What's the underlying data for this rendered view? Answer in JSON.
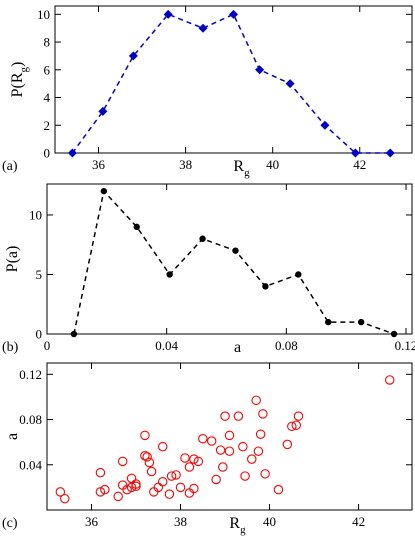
{
  "chart_data": [
    {
      "type": "line",
      "panel_label": "(a)",
      "xlabel_main": "R",
      "xlabel_sub": "g",
      "ylabel_main": "P(R",
      "ylabel_sub": "g",
      "ylabel_close": ")",
      "xlim": [
        35,
        43.2
      ],
      "ylim": [
        0,
        10.6
      ],
      "xticks": [
        36,
        38,
        40,
        42
      ],
      "yticks": [
        0,
        2,
        4,
        6,
        8,
        10
      ],
      "marker": "diamond",
      "line_style": "dashed",
      "color": "#0000cc",
      "x": [
        35.4,
        36.1,
        36.8,
        37.6,
        38.4,
        39.1,
        39.7,
        40.4,
        41.2,
        41.9,
        42.7
      ],
      "y": [
        0,
        3,
        7,
        10,
        9,
        10,
        6,
        5,
        2,
        0,
        0
      ]
    },
    {
      "type": "line",
      "panel_label": "(b)",
      "xlabel_main": "a",
      "ylabel_main": "P(a)",
      "xlim": [
        0,
        0.122
      ],
      "ylim": [
        0,
        12.6
      ],
      "xticks": [
        0,
        0.04,
        0.08,
        0.12
      ],
      "xtick_labels": [
        "0",
        "0.04",
        "0.08",
        "0.12"
      ],
      "yticks": [
        0,
        5,
        10
      ],
      "marker": "circle",
      "line_style": "dashed",
      "color": "#000000",
      "x": [
        0.009,
        0.019,
        0.03,
        0.041,
        0.052,
        0.063,
        0.073,
        0.084,
        0.094,
        0.105,
        0.116
      ],
      "y": [
        0,
        12,
        9,
        5,
        8,
        7,
        4,
        5,
        1,
        1,
        0
      ]
    },
    {
      "type": "scatter",
      "panel_label": "(c)",
      "xlabel_main": "R",
      "xlabel_sub": "g",
      "ylabel_main": "a",
      "xlim": [
        35,
        43.2
      ],
      "ylim": [
        0,
        0.13
      ],
      "xticks": [
        36,
        38,
        40,
        42
      ],
      "yticks": [
        0.04,
        0.08,
        0.12
      ],
      "ytick_labels": [
        "0.04",
        "0.08",
        "0.12"
      ],
      "marker": "open-circle",
      "color": "#ff0000",
      "points": [
        [
          35.3,
          0.016
        ],
        [
          35.4,
          0.01
        ],
        [
          36.2,
          0.033
        ],
        [
          36.2,
          0.016
        ],
        [
          36.3,
          0.018
        ],
        [
          36.6,
          0.012
        ],
        [
          36.7,
          0.043
        ],
        [
          36.7,
          0.022
        ],
        [
          36.8,
          0.018
        ],
        [
          36.9,
          0.028
        ],
        [
          36.9,
          0.02
        ],
        [
          37.0,
          0.023
        ],
        [
          37.0,
          0.021
        ],
        [
          37.2,
          0.048
        ],
        [
          37.2,
          0.066
        ],
        [
          37.25,
          0.047
        ],
        [
          37.3,
          0.042
        ],
        [
          37.35,
          0.034
        ],
        [
          37.4,
          0.016
        ],
        [
          37.5,
          0.02
        ],
        [
          37.6,
          0.056
        ],
        [
          37.6,
          0.025
        ],
        [
          37.75,
          0.014
        ],
        [
          37.8,
          0.03
        ],
        [
          37.9,
          0.031
        ],
        [
          38.0,
          0.02
        ],
        [
          38.1,
          0.046
        ],
        [
          38.2,
          0.038
        ],
        [
          38.2,
          0.015
        ],
        [
          38.3,
          0.045
        ],
        [
          38.4,
          0.043
        ],
        [
          38.5,
          0.063
        ],
        [
          38.3,
          0.019
        ],
        [
          38.7,
          0.061
        ],
        [
          38.8,
          0.027
        ],
        [
          38.9,
          0.053
        ],
        [
          38.95,
          0.038
        ],
        [
          39.0,
          0.083
        ],
        [
          39.1,
          0.066
        ],
        [
          39.1,
          0.052
        ],
        [
          39.3,
          0.083
        ],
        [
          39.4,
          0.056
        ],
        [
          39.45,
          0.03
        ],
        [
          39.6,
          0.045
        ],
        [
          39.7,
          0.097
        ],
        [
          39.75,
          0.052
        ],
        [
          39.8,
          0.067
        ],
        [
          39.85,
          0.085
        ],
        [
          39.9,
          0.032
        ],
        [
          40.2,
          0.018
        ],
        [
          40.4,
          0.058
        ],
        [
          40.5,
          0.074
        ],
        [
          40.6,
          0.075
        ],
        [
          40.65,
          0.083
        ],
        [
          42.7,
          0.115
        ]
      ]
    }
  ]
}
